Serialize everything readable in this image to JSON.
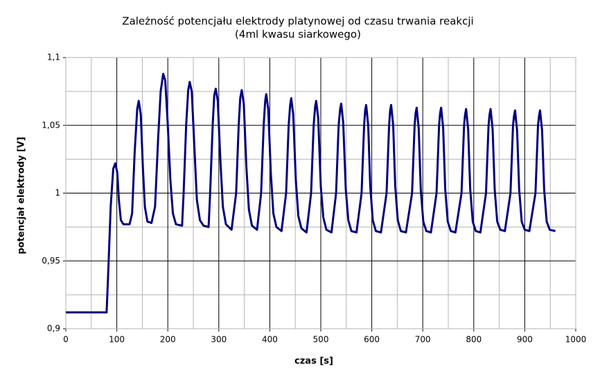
{
  "chart_data": {
    "type": "line",
    "title": "Zależność potencjału elektrody platynowej od czasu trwania reakcji",
    "subtitle": "(4ml kwasu siarkowego)",
    "x_label": "czas [s]",
    "y_label": "potencjał elektrody [V]",
    "xlim": [
      0,
      1000
    ],
    "xticks": [
      0,
      100,
      200,
      300,
      400,
      500,
      600,
      700,
      800,
      900,
      1000
    ],
    "x_minor_ticks": [
      50,
      150,
      250,
      350,
      450,
      550,
      650,
      750,
      850,
      950
    ],
    "ylim": [
      0.9,
      1.1
    ],
    "yticks": [
      {
        "value": 0.9,
        "label": "0,9"
      },
      {
        "value": 0.95,
        "label": "0,95"
      },
      1,
      {
        "value": 1.05,
        "label": "1,05"
      },
      {
        "value": 1.1,
        "label": "1,1"
      }
    ],
    "y_minor_ticks": [
      0.925,
      0.975,
      1.025,
      1.075
    ],
    "grid": true,
    "x": [
      0,
      80,
      83,
      88,
      93,
      97,
      101,
      104,
      108,
      113,
      125,
      130,
      135,
      140,
      143,
      147,
      151,
      155,
      160,
      168,
      175,
      181,
      186,
      191,
      195,
      200,
      205,
      210,
      216,
      228,
      231,
      236,
      240,
      243,
      247,
      252,
      257,
      263,
      270,
      280,
      283,
      288,
      291,
      294,
      298,
      303,
      308,
      314,
      325,
      334,
      339,
      342,
      345,
      349,
      354,
      359,
      365,
      375,
      383,
      388,
      391,
      393,
      397,
      402,
      407,
      413,
      423,
      432,
      437,
      440,
      442,
      446,
      451,
      456,
      462,
      472,
      481,
      486,
      489,
      491,
      495,
      500,
      505,
      511,
      521,
      530,
      535,
      538,
      540,
      544,
      549,
      554,
      560,
      570,
      580,
      585,
      587,
      589,
      593,
      597,
      602,
      608,
      618,
      629,
      634,
      636,
      638,
      642,
      646,
      651,
      657,
      667,
      679,
      684,
      686,
      688,
      692,
      696,
      701,
      707,
      716,
      727,
      732,
      734,
      736,
      740,
      744,
      749,
      755,
      764,
      776,
      781,
      783,
      785,
      789,
      793,
      798,
      804,
      813,
      824,
      829,
      831,
      833,
      837,
      841,
      846,
      852,
      861,
      872,
      877,
      879,
      881,
      885,
      889,
      894,
      900,
      909,
      921,
      926,
      928,
      930,
      934,
      938,
      943,
      949,
      960
    ],
    "series": [
      {
        "color": "#000080",
        "values": [
          0.912,
          0.912,
          0.94,
          0.99,
          1.018,
          1.022,
          1.015,
          0.995,
          0.98,
          0.977,
          0.977,
          0.985,
          1.03,
          1.062,
          1.068,
          1.058,
          1.02,
          0.99,
          0.979,
          0.978,
          0.99,
          1.04,
          1.075,
          1.088,
          1.083,
          1.05,
          1.01,
          0.985,
          0.977,
          0.976,
          1.0,
          1.05,
          1.076,
          1.082,
          1.075,
          1.035,
          0.995,
          0.98,
          0.976,
          0.975,
          1.0,
          1.05,
          1.072,
          1.077,
          1.068,
          1.025,
          0.99,
          0.977,
          0.973,
          1.0,
          1.05,
          1.07,
          1.076,
          1.066,
          1.02,
          0.988,
          0.976,
          0.973,
          1.0,
          1.05,
          1.068,
          1.073,
          1.062,
          1.015,
          0.985,
          0.975,
          0.972,
          1.0,
          1.05,
          1.065,
          1.07,
          1.058,
          1.01,
          0.983,
          0.974,
          0.971,
          1.0,
          1.05,
          1.064,
          1.068,
          1.055,
          1.005,
          0.982,
          0.973,
          0.971,
          1.0,
          1.05,
          1.062,
          1.066,
          1.052,
          1.003,
          0.98,
          0.972,
          0.971,
          1.0,
          1.05,
          1.061,
          1.065,
          1.05,
          1.005,
          0.98,
          0.972,
          0.971,
          1.0,
          1.05,
          1.061,
          1.065,
          1.05,
          1.005,
          0.98,
          0.972,
          0.971,
          1.0,
          1.05,
          1.059,
          1.063,
          1.048,
          1.003,
          0.979,
          0.972,
          0.971,
          1.0,
          1.05,
          1.059,
          1.063,
          1.048,
          1.003,
          0.979,
          0.972,
          0.971,
          1.0,
          1.05,
          1.058,
          1.062,
          1.047,
          1.003,
          0.979,
          0.972,
          0.971,
          1.0,
          1.05,
          1.058,
          1.062,
          1.047,
          1.003,
          0.979,
          0.973,
          0.972,
          1.0,
          1.05,
          1.057,
          1.061,
          1.046,
          1.003,
          0.979,
          0.973,
          0.972,
          1.0,
          1.05,
          1.057,
          1.061,
          1.046,
          1.003,
          0.979,
          0.973,
          0.972
        ]
      }
    ]
  }
}
